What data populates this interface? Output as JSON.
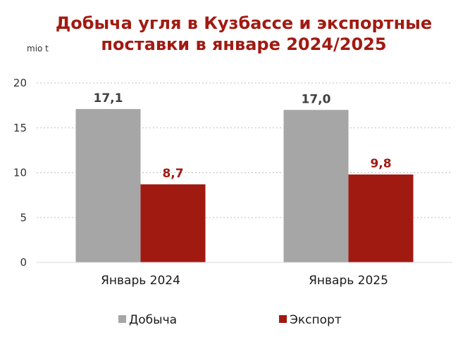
{
  "chart_data": {
    "type": "bar",
    "title_lines": [
      "Добыча угля в Кузбассе и экспортные",
      "поставки в январе 2024/2025"
    ],
    "unit_label": "mio t",
    "categories": [
      "Январь 2024",
      "Январь 2025"
    ],
    "series": [
      {
        "name": "Добыча",
        "values": [
          17.1,
          17.0
        ],
        "labels": [
          "17,1",
          "17,0"
        ],
        "color": "#a6a6a6",
        "label_color": "#404040"
      },
      {
        "name": "Экспорт",
        "values": [
          8.7,
          9.8
        ],
        "labels": [
          "8,7",
          "9,8"
        ],
        "color": "#a11a12",
        "label_color": "#a11a12"
      }
    ],
    "ylim": [
      0,
      20
    ],
    "yticks": [
      0,
      5,
      10,
      15,
      20
    ],
    "grid": true,
    "legend_position": "bottom"
  }
}
